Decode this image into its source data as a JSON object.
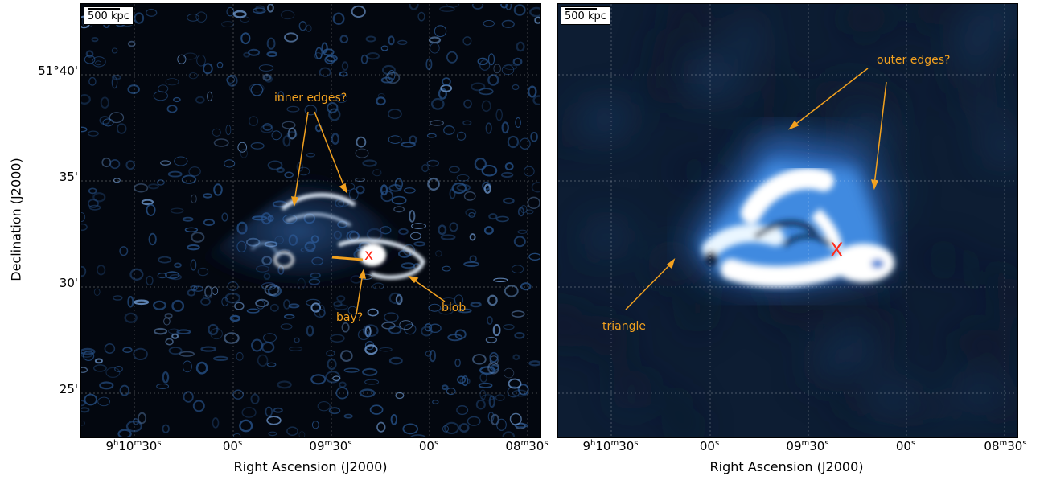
{
  "scalebar": "500 kpc",
  "axes": {
    "ylabel": "Declination (J2000)",
    "xlabel": "Right Ascension (J2000)",
    "yticks": [
      "51°40'",
      "35'",
      "30'",
      "25'"
    ],
    "xticks": [
      {
        "h": "9",
        "m": "10",
        "s": "30"
      },
      {
        "s": "00"
      },
      {
        "m": "09",
        "s": "30"
      },
      {
        "s": "00"
      },
      {
        "m": "08",
        "s": "30"
      }
    ],
    "xtick_suffixes": {
      "h": "h",
      "m": "m",
      "s": "s"
    }
  },
  "left_panel": {
    "annotations": {
      "inner_edges": "inner edges?",
      "bay": "bay?",
      "blob": "blob",
      "x": "x"
    }
  },
  "right_panel": {
    "annotations": {
      "outer_edges": "outer edges?",
      "triangle": "triangle",
      "x": "X"
    }
  },
  "colors": {
    "annotation": "#f2a11f",
    "x_marker": "#ff2a1a",
    "background": "#03070f",
    "emission": "#3a7fd6"
  }
}
